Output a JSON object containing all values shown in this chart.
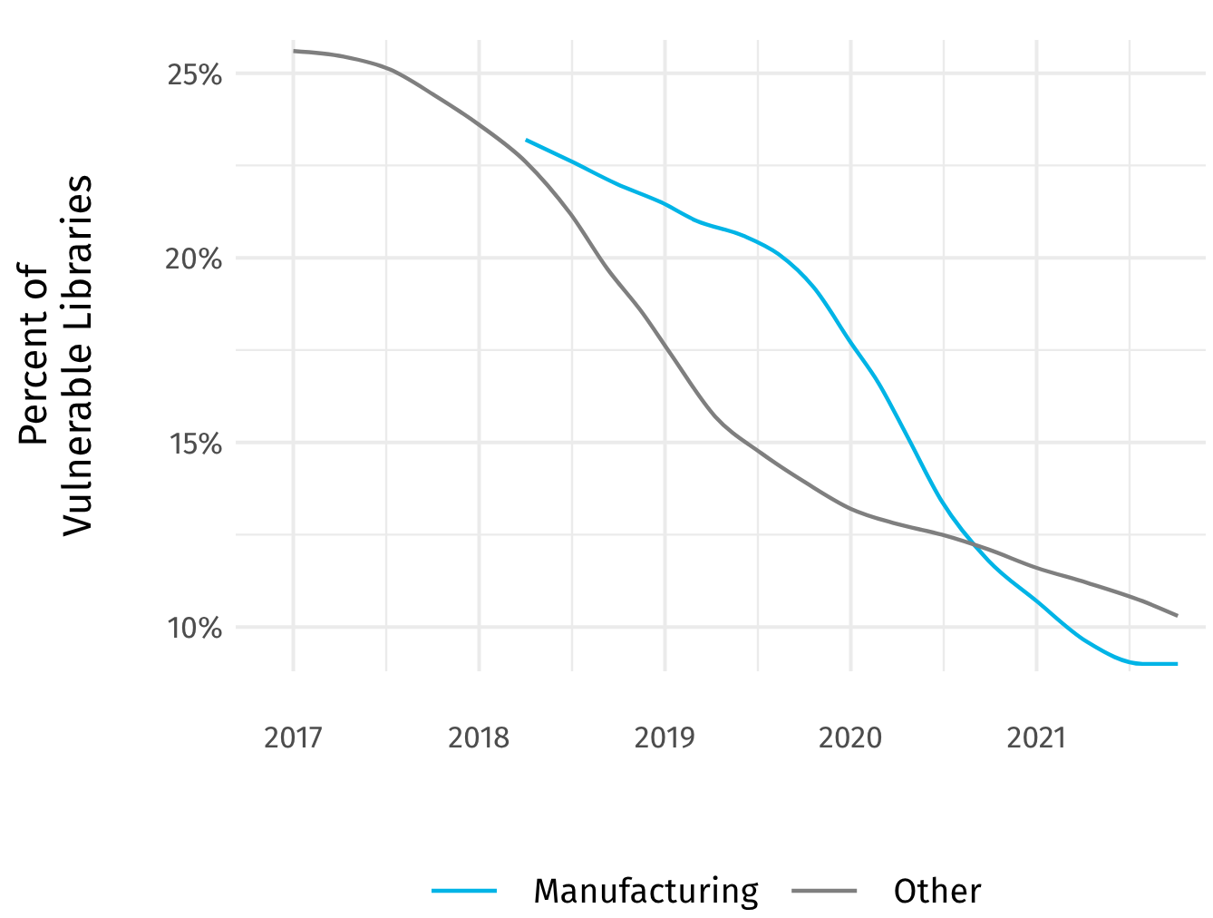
{
  "chart_data": {
    "type": "line",
    "ylabel": "Percent of\nVulnerable Libraries",
    "x": [
      2017,
      2017.27,
      2017.52,
      2017.76,
      2018,
      2018.25,
      2018.49,
      2018.69,
      2018.88,
      2019.03,
      2019.27,
      2019.52,
      2019.76,
      2020,
      2020.24,
      2020.49,
      2020.74,
      2021,
      2021.27,
      2021.57,
      2021.76
    ],
    "series": [
      {
        "name": "Manufacturing",
        "color": "#00b4e6",
        "x": [
          2018.25,
          2018.5,
          2018.74,
          2018.98,
          2019.17,
          2019.42,
          2019.61,
          2019.8,
          2020,
          2020.15,
          2020.3,
          2020.49,
          2020.74,
          2021,
          2021.27,
          2021.57,
          2021.76
        ],
        "values": [
          23.2,
          22.6,
          22.0,
          21.5,
          21.0,
          20.6,
          20.1,
          19.2,
          17.7,
          16.6,
          15.2,
          13.4,
          11.8,
          10.7,
          9.6,
          9.0,
          9.0
        ]
      },
      {
        "name": "Other",
        "color": "#7f7f7f",
        "values": [
          25.6,
          25.45,
          25.1,
          24.4,
          23.6,
          22.6,
          21.2,
          19.7,
          18.5,
          17.4,
          15.7,
          14.7,
          13.9,
          13.2,
          12.8,
          12.5,
          12.1,
          11.6,
          11.2,
          10.7,
          10.3
        ]
      }
    ],
    "xlim": [
      2016.69,
      2021.91
    ],
    "ylim": [
      8.8,
      25.9
    ],
    "xticks": [
      2017,
      {
        "value": 2017.5,
        "label": null
      },
      2018,
      {
        "value": 2018.5,
        "label": null
      },
      2019,
      {
        "value": 2019.5,
        "label": null
      },
      2020,
      {
        "value": 2020.5,
        "label": null
      },
      2021,
      {
        "value": 2021.5,
        "label": null
      }
    ],
    "yticks": [
      {
        "value": 10,
        "label": "10%"
      },
      {
        "value": 12.5,
        "label": null
      },
      {
        "value": 15,
        "label": "15%"
      },
      {
        "value": 17.5,
        "label": null
      },
      {
        "value": 20,
        "label": "20%"
      },
      {
        "value": 22.5,
        "label": null
      },
      {
        "value": 25,
        "label": "25%"
      }
    ],
    "grid": true,
    "legend": "bottom",
    "line_style": "solid",
    "marker": "none"
  }
}
